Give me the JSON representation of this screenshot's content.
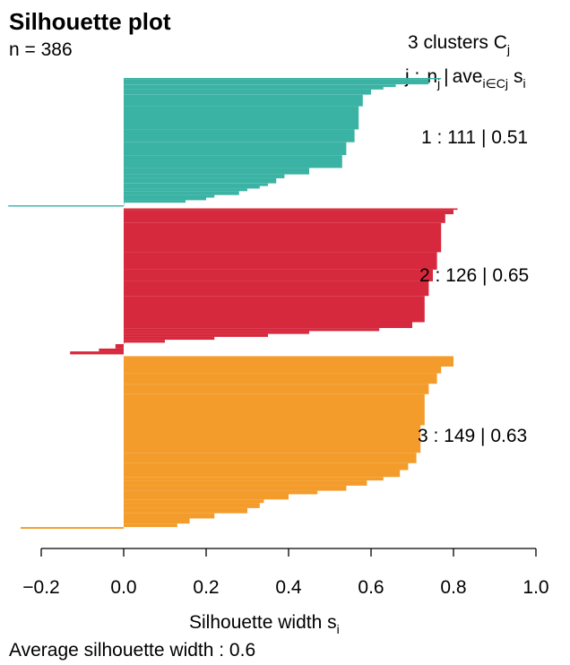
{
  "chart_data": {
    "type": "bar",
    "title": "Silhouette plot",
    "subtitle": "n = 386",
    "legend_title": "3  clusters  C",
    "legend_title_sub": "j",
    "legend_header": {
      "j": "j :",
      "n": "n",
      "n_sub": "j",
      "bar": "|",
      "ave": "ave",
      "ave_sub": "i∈Cj",
      "s": "s",
      "s_sub": "i"
    },
    "xlabel": "Silhouette width s",
    "xlabel_sub": "i",
    "footer": "Average silhouette width :  0.6",
    "xlim": [
      -0.2,
      1.0
    ],
    "xticks": [
      -0.2,
      0.0,
      0.2,
      0.4,
      0.6,
      0.8,
      1.0
    ],
    "xtick_labels": [
      "−0.2",
      "0.0",
      "0.2",
      "0.4",
      "0.6",
      "0.8",
      "1.0"
    ],
    "average_width": 0.6,
    "clusters": [
      {
        "id": 1,
        "n": 111,
        "avg": 0.51,
        "color": "#3bb3a4",
        "label": "1 :   111  |  0.51",
        "profile": [
          [
            0.77,
            0.01
          ],
          [
            0.74,
            0.05
          ],
          [
            0.66,
            0.07
          ],
          [
            0.63,
            0.09
          ],
          [
            0.6,
            0.13
          ],
          [
            0.58,
            0.22
          ],
          [
            0.57,
            0.4
          ],
          [
            0.56,
            0.5
          ],
          [
            0.54,
            0.6
          ],
          [
            0.53,
            0.7
          ],
          [
            0.45,
            0.75
          ],
          [
            0.39,
            0.78
          ],
          [
            0.37,
            0.82
          ],
          [
            0.35,
            0.84
          ],
          [
            0.33,
            0.86
          ],
          [
            0.3,
            0.88
          ],
          [
            0.28,
            0.91
          ],
          [
            0.22,
            0.93
          ],
          [
            0.2,
            0.95
          ],
          [
            0.15,
            0.97
          ],
          [
            0.0,
            0.99
          ],
          [
            -0.28,
            1.0
          ]
        ]
      },
      {
        "id": 2,
        "n": 126,
        "avg": 0.65,
        "color": "#d7293d",
        "label": "2 :   126  |  0.65",
        "profile": [
          [
            0.81,
            0.01
          ],
          [
            0.8,
            0.04
          ],
          [
            0.78,
            0.1
          ],
          [
            0.77,
            0.3
          ],
          [
            0.76,
            0.42
          ],
          [
            0.75,
            0.5
          ],
          [
            0.74,
            0.6
          ],
          [
            0.73,
            0.78
          ],
          [
            0.7,
            0.82
          ],
          [
            0.62,
            0.84
          ],
          [
            0.45,
            0.86
          ],
          [
            0.35,
            0.88
          ],
          [
            0.22,
            0.9
          ],
          [
            0.1,
            0.92
          ],
          [
            0.0,
            0.93
          ],
          [
            -0.02,
            0.96
          ],
          [
            -0.06,
            0.98
          ],
          [
            -0.13,
            1.0
          ]
        ]
      },
      {
        "id": 3,
        "n": 149,
        "avg": 0.63,
        "color": "#f39c2c",
        "label": "3 :   149  |  0.63",
        "profile": [
          [
            0.8,
            0.06
          ],
          [
            0.77,
            0.1
          ],
          [
            0.76,
            0.16
          ],
          [
            0.74,
            0.22
          ],
          [
            0.73,
            0.4
          ],
          [
            0.72,
            0.56
          ],
          [
            0.71,
            0.62
          ],
          [
            0.69,
            0.66
          ],
          [
            0.67,
            0.7
          ],
          [
            0.63,
            0.72
          ],
          [
            0.59,
            0.75
          ],
          [
            0.54,
            0.78
          ],
          [
            0.47,
            0.8
          ],
          [
            0.4,
            0.83
          ],
          [
            0.34,
            0.85
          ],
          [
            0.33,
            0.88
          ],
          [
            0.3,
            0.91
          ],
          [
            0.22,
            0.94
          ],
          [
            0.16,
            0.97
          ],
          [
            0.13,
            0.99
          ],
          [
            -0.25,
            1.0
          ]
        ]
      }
    ]
  }
}
